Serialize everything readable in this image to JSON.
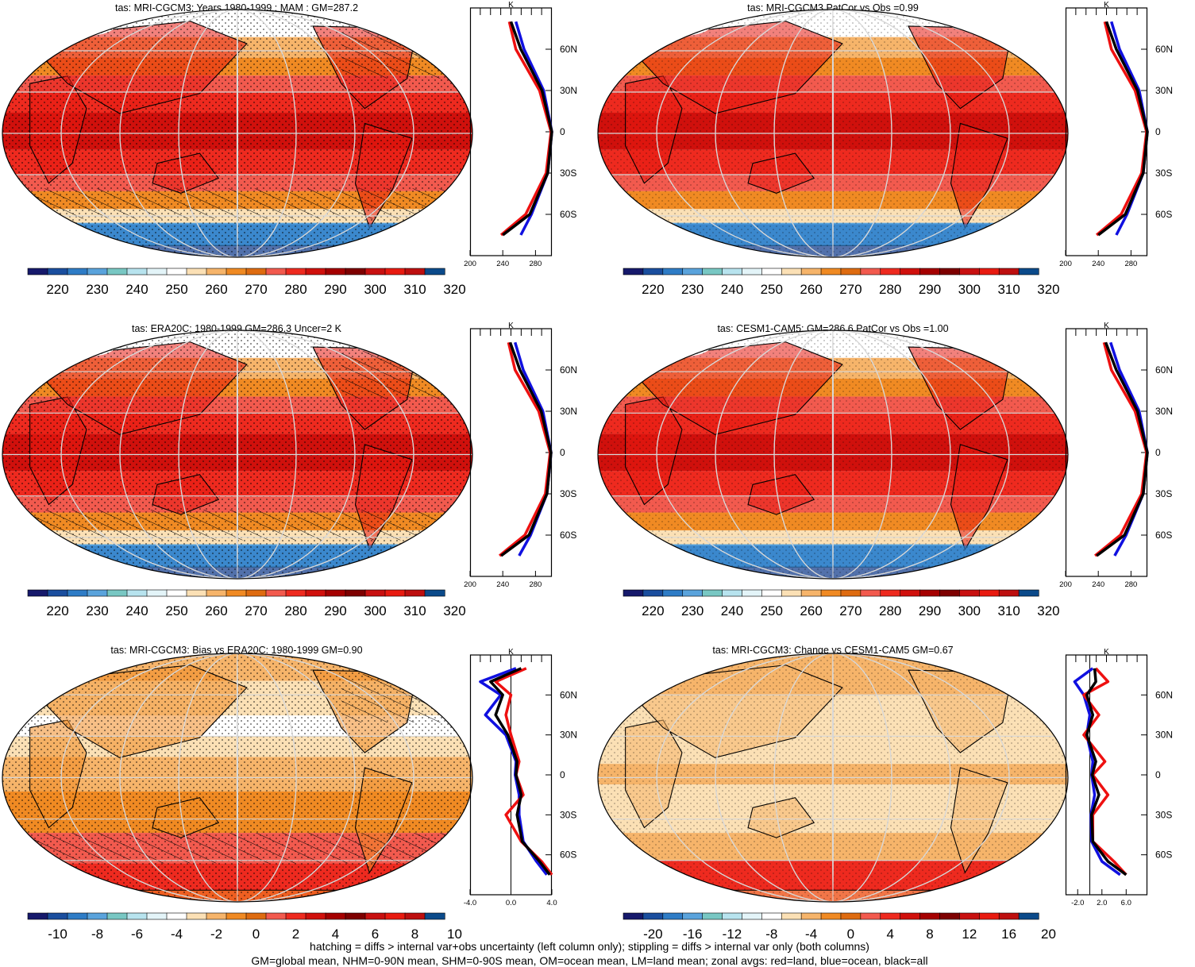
{
  "panels": [
    {
      "id": "p1",
      "title": "tas: MRI-CGCM3: Years 1980-1999 : MAM : GM=287.2",
      "kind": "abs",
      "hatch": true,
      "stipple": "heavy",
      "profile": {
        "xticks": [
          "200",
          "240",
          "280"
        ],
        "xrange": [
          200,
          300
        ],
        "unit": "K"
      },
      "colorbar": {
        "labels": [
          "220",
          "230",
          "240",
          "250",
          "260",
          "270",
          "280",
          "290",
          "300",
          "310",
          "320"
        ]
      }
    },
    {
      "id": "p2",
      "title": "tas: MRI-CGCM3 PatCor vs Obs =0.99",
      "kind": "abs",
      "hatch": false,
      "stipple": "light",
      "profile": {
        "xticks": [
          "200",
          "240",
          "280"
        ],
        "xrange": [
          200,
          300
        ],
        "unit": "K"
      },
      "colorbar": {
        "labels": [
          "220",
          "230",
          "240",
          "250",
          "260",
          "270",
          "280",
          "290",
          "300",
          "310",
          "320"
        ]
      }
    },
    {
      "id": "p3",
      "title": "tas: ERA20C: 1980-1999 GM=286.3 Uncer=2 K",
      "kind": "abs",
      "hatch": true,
      "stipple": "heavy",
      "profile": {
        "xticks": [
          "200",
          "240",
          "280"
        ],
        "xrange": [
          200,
          300
        ],
        "unit": "K"
      },
      "colorbar": {
        "labels": [
          "220",
          "230",
          "240",
          "250",
          "260",
          "270",
          "280",
          "290",
          "300",
          "310",
          "320"
        ]
      }
    },
    {
      "id": "p4",
      "title": "tas: CESM1-CAM5: GM=286.6 PatCor vs Obs =1.00",
      "kind": "abs",
      "hatch": false,
      "stipple": "light",
      "profile": {
        "xticks": [
          "200",
          "240",
          "280"
        ],
        "xrange": [
          200,
          300
        ],
        "unit": "K"
      },
      "colorbar": {
        "labels": [
          "220",
          "230",
          "240",
          "250",
          "260",
          "270",
          "280",
          "290",
          "300",
          "310",
          "320"
        ]
      }
    },
    {
      "id": "p5",
      "title": "tas: MRI-CGCM3: Bias vs ERA20C: 1980-1999 GM=0.90",
      "kind": "bias",
      "hatch": true,
      "stipple": "heavy",
      "profile": {
        "xticks": [
          "-4.0",
          "0.0",
          "4.0"
        ],
        "xrange": [
          -4,
          4
        ],
        "unit": "K"
      },
      "colorbar": {
        "labels": [
          "-10",
          "-8",
          "-6",
          "-4",
          "-2",
          "0",
          "2",
          "4",
          "6",
          "8",
          "10"
        ]
      }
    },
    {
      "id": "p6",
      "title": "tas: MRI-CGCM3: Change vs CESM1-CAM5 GM=0.67",
      "kind": "change",
      "hatch": false,
      "stipple": "light",
      "profile": {
        "xticks": [
          "-2.0",
          "2.0",
          "6.0"
        ],
        "xrange": [
          -4,
          9.5
        ],
        "unit": "K"
      },
      "colorbar": {
        "labels": [
          "-20",
          "-16",
          "-12",
          "-8",
          "-4",
          "0",
          "4",
          "8",
          "12",
          "16",
          "20"
        ]
      }
    }
  ],
  "lat_labels": [
    "60N",
    "30N",
    "0",
    "30S",
    "60S"
  ],
  "colorbar_colors": [
    "#16196b",
    "#1a4e9e",
    "#2e7cc6",
    "#5aa3dc",
    "#78c7c3",
    "#b7e3ee",
    "#e3f4f8",
    "#ffffff",
    "#fbe0b5",
    "#f6b46a",
    "#f08a23",
    "#de6b10",
    "#f25a4e",
    "#ee2a1f",
    "#d0100c",
    "#a50000",
    "#7e0000",
    "#c81010",
    "#e81a10",
    "#bd0f0f",
    "#0b4a8a"
  ],
  "footer": {
    "line1": "hatching = diffs > internal var+obs uncertainty (left column only); stippling = diffs > internal var only (both columns)",
    "line2": "GM=global mean, NHM=0-90N mean, SHM=0-90S mean, OM=ocean mean, LM=land mean; zonal avgs: red=land, blue=ocean, black=all"
  },
  "chart_data": [
    {
      "type": "heatmap",
      "title": "tas: MRI-CGCM3: Years 1980-1999 : MAM : GM=287.2",
      "colorbar_range": [
        220,
        320
      ],
      "units": "K",
      "zonal_profile": {
        "lat": [
          80,
          60,
          30,
          0,
          -30,
          -60,
          -75
        ],
        "land": [
          248,
          256,
          285,
          299,
          293,
          268,
          238
        ],
        "ocean": [
          256,
          266,
          290,
          300,
          295,
          275,
          262
        ],
        "all": [
          250,
          262,
          288,
          300,
          295,
          273,
          240
        ]
      }
    },
    {
      "type": "heatmap",
      "title": "tas: MRI-CGCM3 PatCor vs Obs =0.99",
      "colorbar_range": [
        220,
        320
      ],
      "units": "K",
      "zonal_profile": {
        "lat": [
          80,
          60,
          30,
          0,
          -30,
          -60,
          -75
        ],
        "land": [
          248,
          256,
          285,
          299,
          293,
          268,
          238
        ],
        "ocean": [
          256,
          266,
          290,
          300,
          295,
          275,
          262
        ],
        "all": [
          250,
          262,
          288,
          300,
          295,
          273,
          240
        ]
      }
    },
    {
      "type": "heatmap",
      "title": "tas: ERA20C: 1980-1999 GM=286.3 Uncer=2 K",
      "colorbar_range": [
        220,
        320
      ],
      "units": "K",
      "zonal_profile": {
        "lat": [
          80,
          60,
          30,
          0,
          -30,
          -60,
          -75
        ],
        "land": [
          247,
          255,
          284,
          298,
          292,
          267,
          236
        ],
        "ocean": [
          255,
          265,
          289,
          299,
          294,
          274,
          260
        ],
        "all": [
          249,
          261,
          287,
          299,
          294,
          272,
          238
        ]
      }
    },
    {
      "type": "heatmap",
      "title": "tas: CESM1-CAM5: GM=286.6 PatCor vs Obs =1.00",
      "colorbar_range": [
        220,
        320
      ],
      "units": "K",
      "zonal_profile": {
        "lat": [
          80,
          60,
          30,
          0,
          -30,
          -60,
          -75
        ],
        "land": [
          247,
          256,
          285,
          299,
          293,
          267,
          236
        ],
        "ocean": [
          255,
          266,
          290,
          300,
          295,
          274,
          260
        ],
        "all": [
          249,
          262,
          288,
          300,
          295,
          272,
          238
        ]
      }
    },
    {
      "type": "heatmap",
      "title": "tas: MRI-CGCM3: Bias vs ERA20C: 1980-1999 GM=0.90",
      "colorbar_range": [
        -10,
        10
      ],
      "units": "K",
      "zonal_profile": {
        "lat": [
          80,
          70,
          60,
          45,
          30,
          10,
          0,
          -15,
          -30,
          -50,
          -65,
          -75
        ],
        "land": [
          1.5,
          -1.5,
          0,
          -0.5,
          0,
          0.8,
          0.5,
          1.2,
          -0.5,
          1,
          3,
          4
        ],
        "ocean": [
          0.5,
          -3,
          -1,
          -2.5,
          -0.5,
          0.5,
          0.4,
          0.8,
          0.8,
          1.2,
          2.5,
          3.5
        ],
        "all": [
          1,
          -2,
          -0.8,
          -1.5,
          -0.3,
          0.6,
          0.5,
          1,
          0.6,
          1.1,
          2.8,
          3.8
        ]
      }
    },
    {
      "type": "heatmap",
      "title": "tas: MRI-CGCM3: Change vs CESM1-CAM5 GM=0.67",
      "colorbar_range": [
        -20,
        20
      ],
      "units": "K",
      "zonal_profile": {
        "lat": [
          80,
          70,
          60,
          45,
          30,
          10,
          0,
          -15,
          -30,
          -50,
          -65,
          -75
        ],
        "land": [
          1,
          3,
          -1,
          1.5,
          -1,
          2.5,
          0.5,
          3,
          0.5,
          0.5,
          4,
          6
        ],
        "ocean": [
          0.5,
          -2.5,
          -1,
          0,
          -0.5,
          0.5,
          0.3,
          0.8,
          0.2,
          0.3,
          2,
          5
        ],
        "all": [
          0.8,
          1,
          -0.5,
          0.5,
          -0.5,
          1,
          0.4,
          1.5,
          0.3,
          0.5,
          3,
          6
        ]
      }
    }
  ]
}
